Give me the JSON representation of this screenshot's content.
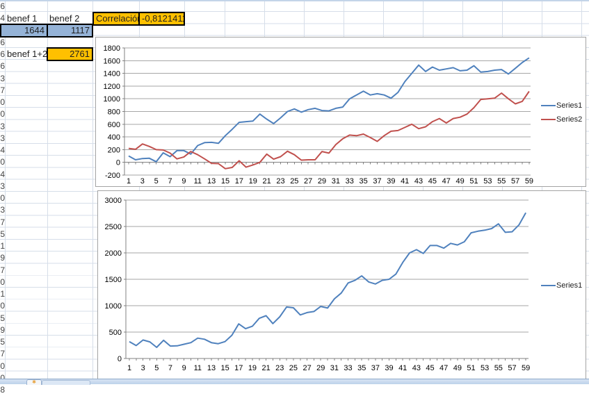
{
  "meta": {
    "context": "Excel worksheet with correlation cells and two embedded line charts"
  },
  "cells": {
    "benef1_label": "benef 1",
    "benef2_label": "benef 2",
    "benef1_value": "1644",
    "benef2_value": "1117",
    "correlation_label": "Correlación",
    "correlation_value": "-0,8121411",
    "benef_sum_label": "benef 1+2",
    "benef_sum_value": "2761"
  },
  "row_edge_digits": [
    "6",
    "4",
    "",
    "6",
    "6",
    "6",
    "3",
    "7",
    "0",
    "0",
    "3",
    "3",
    "4",
    "0",
    "4",
    "3",
    "0",
    "3",
    "7",
    "5",
    "1",
    "9",
    "7",
    "0",
    "1",
    "0",
    "5",
    "9",
    "5",
    "7",
    "0",
    "0",
    "8"
  ],
  "colors": {
    "selection_fill": "#95b3d7",
    "highlight_fill": "#ffc000",
    "series1": "#4f81bd",
    "series2": "#c0504d",
    "sheet_gridline": "#d6dee9",
    "chart_gridline": "#a6a6a6",
    "chart_border": "#a3a3a3",
    "axis_line": "#808080"
  },
  "chart_data": [
    {
      "type": "line",
      "title": "",
      "xlabel": "",
      "ylabel": "",
      "ylim": [
        -200,
        1800
      ],
      "grid": true,
      "legend_position": "right",
      "y_ticks": [
        1800,
        1600,
        1400,
        1200,
        1000,
        800,
        600,
        400,
        200,
        0,
        -200
      ],
      "x": [
        1,
        2,
        3,
        4,
        5,
        6,
        7,
        8,
        9,
        10,
        11,
        12,
        13,
        14,
        15,
        16,
        17,
        18,
        19,
        20,
        21,
        22,
        23,
        24,
        25,
        26,
        27,
        28,
        29,
        30,
        31,
        32,
        33,
        34,
        35,
        36,
        37,
        38,
        39,
        40,
        41,
        42,
        43,
        44,
        45,
        46,
        47,
        48,
        49,
        50,
        51,
        52,
        53,
        54,
        55,
        56,
        57,
        58,
        59
      ],
      "x_tick_labels": [
        "1",
        "3",
        "5",
        "7",
        "9",
        "11",
        "13",
        "15",
        "17",
        "19",
        "21",
        "23",
        "25",
        "27",
        "29",
        "31",
        "33",
        "35",
        "37",
        "39",
        "41",
        "43",
        "45",
        "47",
        "49",
        "51",
        "53",
        "55",
        "57",
        "59"
      ],
      "series": [
        {
          "name": "Series1",
          "color": "#4f81bd",
          "values": [
            100,
            40,
            60,
            65,
            10,
            150,
            90,
            185,
            185,
            130,
            265,
            310,
            315,
            300,
            420,
            520,
            630,
            640,
            650,
            760,
            680,
            610,
            700,
            800,
            840,
            790,
            830,
            850,
            815,
            810,
            850,
            870,
            1000,
            1060,
            1120,
            1060,
            1080,
            1060,
            1010,
            1100,
            1270,
            1400,
            1530,
            1430,
            1500,
            1450,
            1470,
            1490,
            1440,
            1450,
            1520,
            1420,
            1430,
            1450,
            1460,
            1390,
            1480,
            1570,
            1644
          ]
        },
        {
          "name": "Series2",
          "color": "#c0504d",
          "values": [
            220,
            205,
            290,
            250,
            200,
            195,
            145,
            55,
            85,
            170,
            120,
            55,
            -15,
            -20,
            -100,
            -80,
            25,
            -75,
            -40,
            0,
            130,
            50,
            90,
            175,
            120,
            35,
            40,
            40,
            170,
            145,
            280,
            370,
            430,
            420,
            445,
            390,
            330,
            420,
            490,
            500,
            550,
            600,
            530,
            560,
            640,
            690,
            620,
            690,
            710,
            760,
            860,
            990,
            1000,
            1010,
            1090,
            1000,
            920,
            960,
            1117
          ]
        }
      ]
    },
    {
      "type": "line",
      "title": "",
      "xlabel": "",
      "ylabel": "",
      "ylim": [
        0,
        3000
      ],
      "grid": true,
      "legend_position": "right",
      "y_ticks": [
        3000,
        2500,
        2000,
        1500,
        1000,
        500,
        0
      ],
      "x": [
        1,
        2,
        3,
        4,
        5,
        6,
        7,
        8,
        9,
        10,
        11,
        12,
        13,
        14,
        15,
        16,
        17,
        18,
        19,
        20,
        21,
        22,
        23,
        24,
        25,
        26,
        27,
        28,
        29,
        30,
        31,
        32,
        33,
        34,
        35,
        36,
        37,
        38,
        39,
        40,
        41,
        42,
        43,
        44,
        45,
        46,
        47,
        48,
        49,
        50,
        51,
        52,
        53,
        54,
        55,
        56,
        57,
        58,
        59
      ],
      "x_tick_labels": [
        "1",
        "3",
        "5",
        "7",
        "9",
        "11",
        "13",
        "15",
        "17",
        "19",
        "21",
        "23",
        "25",
        "27",
        "29",
        "31",
        "33",
        "35",
        "37",
        "39",
        "41",
        "43",
        "45",
        "47",
        "49",
        "51",
        "53",
        "55",
        "57",
        "59"
      ],
      "series": [
        {
          "name": "Series1",
          "color": "#4f81bd",
          "values": [
            320,
            245,
            350,
            315,
            210,
            345,
            235,
            240,
            270,
            300,
            385,
            365,
            300,
            280,
            320,
            440,
            655,
            565,
            610,
            760,
            810,
            660,
            790,
            975,
            960,
            825,
            870,
            890,
            985,
            955,
            1130,
            1240,
            1430,
            1480,
            1565,
            1450,
            1410,
            1480,
            1500,
            1600,
            1820,
            2000,
            2060,
            1990,
            2140,
            2140,
            2090,
            2180,
            2150,
            2210,
            2380,
            2410,
            2430,
            2460,
            2550,
            2390,
            2400,
            2530,
            2761
          ]
        }
      ]
    }
  ]
}
